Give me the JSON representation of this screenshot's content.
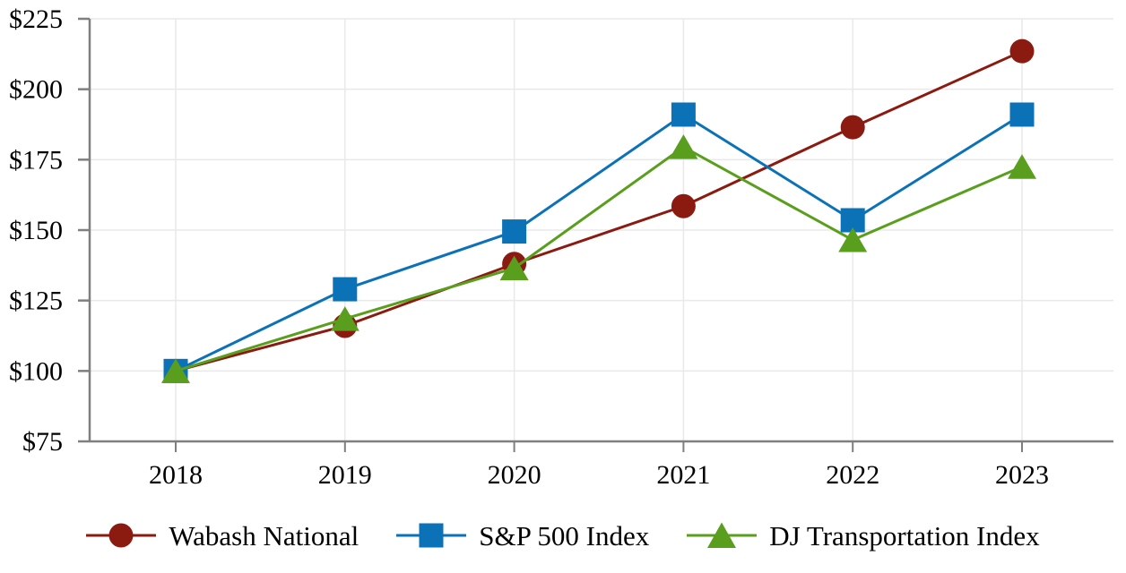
{
  "chart_data": {
    "type": "line",
    "categories": [
      "2018",
      "2019",
      "2020",
      "2021",
      "2022",
      "2023"
    ],
    "series": [
      {
        "name": "Wabash National",
        "marker": "circle",
        "color": "#8B1B10",
        "values": [
          100,
          116,
          138,
          158.5,
          186.5,
          213.5
        ]
      },
      {
        "name": "S&P 500 Index",
        "marker": "square",
        "color": "#0C72B8",
        "values": [
          100,
          129,
          149.5,
          191,
          153.5,
          191
        ]
      },
      {
        "name": "DJ Transportation Index",
        "marker": "triangle",
        "color": "#5A9E1D",
        "values": [
          100,
          118.5,
          136.5,
          179.5,
          146.5,
          172.5
        ]
      }
    ],
    "ylim": [
      75,
      225
    ],
    "ytick_values": [
      75,
      100,
      125,
      150,
      175,
      200,
      225
    ],
    "ytick_labels": [
      "$75",
      "$100",
      "$125",
      "$150",
      "$175",
      "$200",
      "$225"
    ],
    "xtick_labels": [
      "2018",
      "2019",
      "2020",
      "2021",
      "2022",
      "2023"
    ],
    "grid": true,
    "legend_position": "bottom",
    "axis_color": "#7F7F7F",
    "gridline_color": "#E9E9E9",
    "text_color": "#000000"
  }
}
